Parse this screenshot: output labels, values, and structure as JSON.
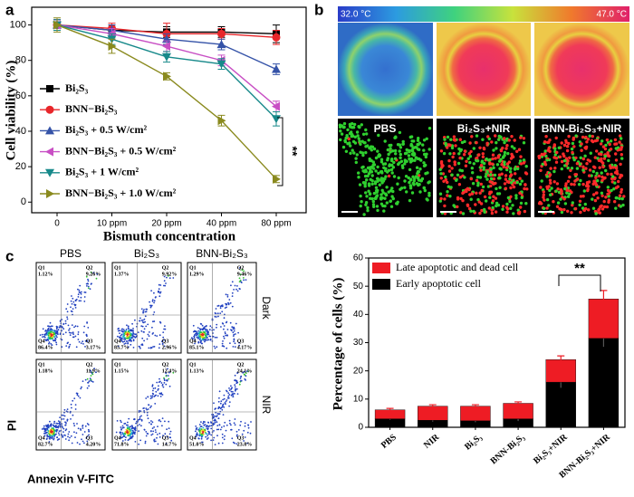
{
  "chart_data": [
    {
      "type": "line",
      "x_label": "Bismuth concentration",
      "y_label": "Cell viability (%)",
      "categories": [
        "0",
        "10 ppm",
        "20 ppm",
        "40 ppm",
        "80 ppm"
      ],
      "ylim": [
        -6,
        110
      ],
      "yticks": [
        0,
        20,
        40,
        60,
        80,
        100
      ],
      "annotation": "**",
      "series": [
        {
          "name": "Bi₂S₃",
          "color": "#000000",
          "marker": "square",
          "values": [
            100,
            97,
            96,
            96,
            95
          ],
          "errors": [
            3,
            3,
            3,
            3,
            5
          ]
        },
        {
          "name": "BNN−Bi₂S₃",
          "color": "#e8262a",
          "marker": "circle",
          "values": [
            100,
            98,
            95,
            95,
            93
          ],
          "errors": [
            3,
            3,
            6,
            3,
            4
          ]
        },
        {
          "name": "Bi₂S₃ + 0.5 W/cm²",
          "color": "#3553a8",
          "marker": "triangle-up",
          "values": [
            100,
            97,
            92,
            89,
            75
          ],
          "errors": [
            3,
            3,
            3,
            3,
            3
          ]
        },
        {
          "name": "BNN−Bi₂S₃ + 0.5 W/cm²",
          "color": "#c84fc4",
          "marker": "triangle-left",
          "values": [
            100,
            95,
            88,
            80,
            54
          ],
          "errors": [
            3,
            3,
            3,
            3,
            3
          ]
        },
        {
          "name": "Bi₂S₃ + 1 W/cm²",
          "color": "#17898a",
          "marker": "triangle-down",
          "values": [
            100,
            92,
            82,
            78,
            47
          ],
          "errors": [
            3,
            3,
            3,
            3,
            4
          ]
        },
        {
          "name": "BNN−Bi₂S₃ + 1.0 W/cm²",
          "color": "#8a8a1e",
          "marker": "triangle-right",
          "values": [
            100,
            88,
            71,
            46,
            13
          ],
          "errors": [
            4,
            4,
            2,
            3,
            2
          ]
        }
      ]
    },
    {
      "type": "stacked-bar",
      "y_label": "Percentage of cells (%)",
      "categories": [
        "PBS",
        "NIR",
        "Bi₂S₃",
        "BNN-Bi₂S₃",
        "Bi₂S₃+NIR",
        "BNN-Bi₂S₃+NIR"
      ],
      "ylim": [
        0,
        60
      ],
      "yticks": [
        0,
        10,
        20,
        30,
        40,
        50,
        60
      ],
      "annotation": "**",
      "series": [
        {
          "name": "Late apoptotic and dead cell",
          "color": "#ee1c24",
          "values": [
            3.2,
            5,
            5.2,
            5.5,
            8,
            14
          ],
          "errors": [
            0.5,
            0.5,
            0.5,
            0.5,
            1.3,
            3
          ]
        },
        {
          "name": "Early apoptotic cell",
          "color": "#000000",
          "values": [
            3,
            2.5,
            2.3,
            3,
            16,
            31.5
          ],
          "errors": [
            0.3,
            0.5,
            0.5,
            0.8,
            2,
            3
          ]
        }
      ]
    }
  ],
  "panel_labels": [
    "a",
    "b",
    "c",
    "d"
  ],
  "thermal": {
    "scale_min": "32.0 °C",
    "scale_max": "47.0 °C",
    "groups": [
      "PBS",
      "Bi₂S₃+NIR",
      "BNN-Bi₂S₃+NIR"
    ]
  },
  "flow": {
    "columns": [
      "PBS",
      "Bi₂S₃",
      "BNN-Bi₂S₃"
    ],
    "rows": [
      "Dark",
      "NIR"
    ],
    "quadrant_names": [
      "Q1",
      "Q2",
      "Q3",
      "Q4"
    ],
    "y_label": "PI",
    "x_label": "Annexin V-FITC",
    "plots": [
      {
        "Q1": "1.12%",
        "Q2": "9.26%",
        "Q3": "3.17%",
        "Q4": "86.4%"
      },
      {
        "Q1": "1.37%",
        "Q2": "9.92%",
        "Q3": "2.96%",
        "Q4": "85.7%"
      },
      {
        "Q1": "1.29%",
        "Q2": "9.46%",
        "Q3": "4.17%",
        "Q4": "85.1%"
      },
      {
        "Q1": "1.18%",
        "Q2": "11.9%",
        "Q3": "4.20%",
        "Q4": "82.7%"
      },
      {
        "Q1": "1.15%",
        "Q2": "12.4%",
        "Q3": "14.7%",
        "Q4": "71.8%"
      },
      {
        "Q1": "1.13%",
        "Q2": "24.1%",
        "Q3": "23.8%",
        "Q4": "51.0%"
      }
    ]
  }
}
